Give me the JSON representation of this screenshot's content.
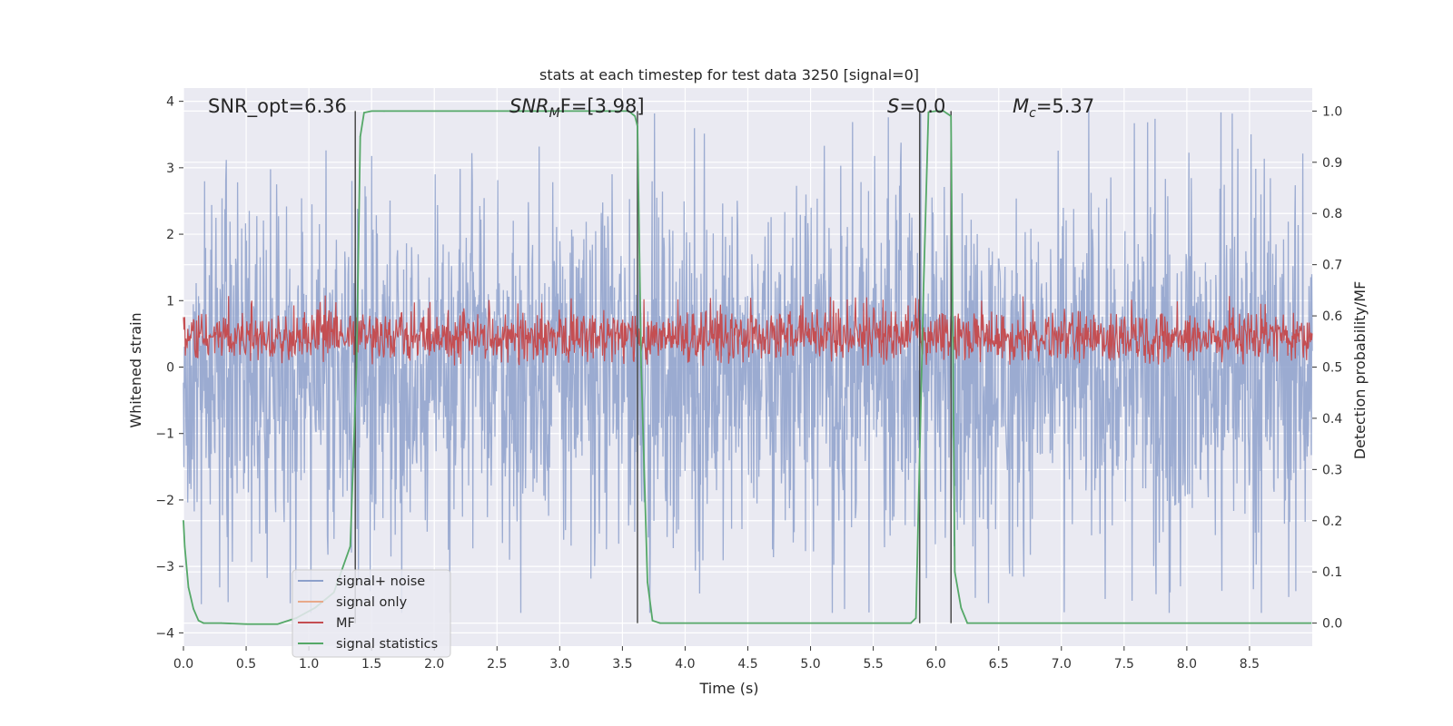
{
  "chart_data": {
    "type": "line",
    "title": "stats at each timestep for test data 3250 [signal=0]",
    "xlabel": "Time (s)",
    "ylabel": "Whitened strain",
    "y2label": "Detection probability/MF",
    "xlim": [
      0.0,
      9.0
    ],
    "ylim": [
      -4.2,
      4.2
    ],
    "y2lim": [
      -0.045,
      1.045
    ],
    "xticks": [
      "0.0",
      "0.5",
      "1.0",
      "1.5",
      "2.0",
      "2.5",
      "3.0",
      "3.5",
      "4.0",
      "4.5",
      "5.0",
      "5.5",
      "6.0",
      "6.5",
      "7.0",
      "7.5",
      "8.0",
      "8.5"
    ],
    "yticks": [
      "4",
      "3",
      "2",
      "1",
      "0",
      "−1",
      "−2",
      "−3",
      "−4"
    ],
    "y2ticks": [
      "1.0",
      "0.9",
      "0.8",
      "0.7",
      "0.6",
      "0.5",
      "0.4",
      "0.3",
      "0.2",
      "0.1",
      "0.0"
    ],
    "annotations": {
      "snr_opt": "SNR_opt=6.36",
      "snr_mf_main": "SNR",
      "snr_mf_sub": "M",
      "snr_mf_rest": "F=[3.98]",
      "s_main": "S",
      "s_rest": "=0.0",
      "mc_main": "M",
      "mc_sub": "c",
      "mc_rest": "=5.37"
    },
    "legend": {
      "placement": "lower-left",
      "entries": [
        {
          "label": "signal+ noise",
          "color": "#8da0cb"
        },
        {
          "label": "signal only",
          "color": "#e8a98a"
        },
        {
          "label": "MF",
          "color": "#c44e52"
        },
        {
          "label": "signal statistics",
          "color": "#55a868"
        }
      ]
    },
    "vertical_markers": [
      1.37,
      3.62,
      5.87,
      6.12
    ],
    "series": [
      {
        "name": "signal statistics",
        "axis": "right",
        "color": "#55a868",
        "x": [
          0.0,
          0.01,
          0.04,
          0.08,
          0.12,
          0.16,
          0.3,
          0.5,
          0.75,
          0.9,
          1.05,
          1.2,
          1.33,
          1.38,
          1.41,
          1.44,
          1.5,
          1.6,
          3.0,
          3.55,
          3.6,
          3.62,
          3.65,
          3.7,
          3.74,
          3.8,
          5.8,
          5.84,
          5.9,
          5.94,
          6.0,
          6.06,
          6.12,
          6.15,
          6.2,
          6.25,
          8.99
        ],
        "y": [
          0.2,
          0.15,
          0.07,
          0.028,
          0.005,
          0.0,
          0.0,
          -0.002,
          -0.002,
          0.01,
          0.03,
          0.06,
          0.15,
          0.5,
          0.95,
          0.997,
          1.0,
          1.0,
          1.0,
          1.0,
          0.99,
          0.97,
          0.5,
          0.08,
          0.005,
          0.0,
          0.0,
          0.01,
          0.65,
          0.998,
          1.0,
          1.0,
          0.99,
          0.1,
          0.03,
          0.0,
          0.0
        ]
      },
      {
        "name": "MF",
        "axis": "right",
        "color": "#c44e52",
        "x": [
          0.0,
          9.0
        ],
        "range": [
          0.5,
          0.62
        ],
        "note": "dense noisy trace between ~0.5 and ~0.62 on the right axis"
      },
      {
        "name": "signal+ noise",
        "axis": "left",
        "color": "#8da0cb",
        "x": [
          0.0,
          9.0
        ],
        "range": [
          -3.7,
          4.0
        ],
        "note": "dense whitened strain trace mostly within [-2.2, 2.3] with spikes up to ~4.0 and down to ~-3.7"
      }
    ]
  }
}
